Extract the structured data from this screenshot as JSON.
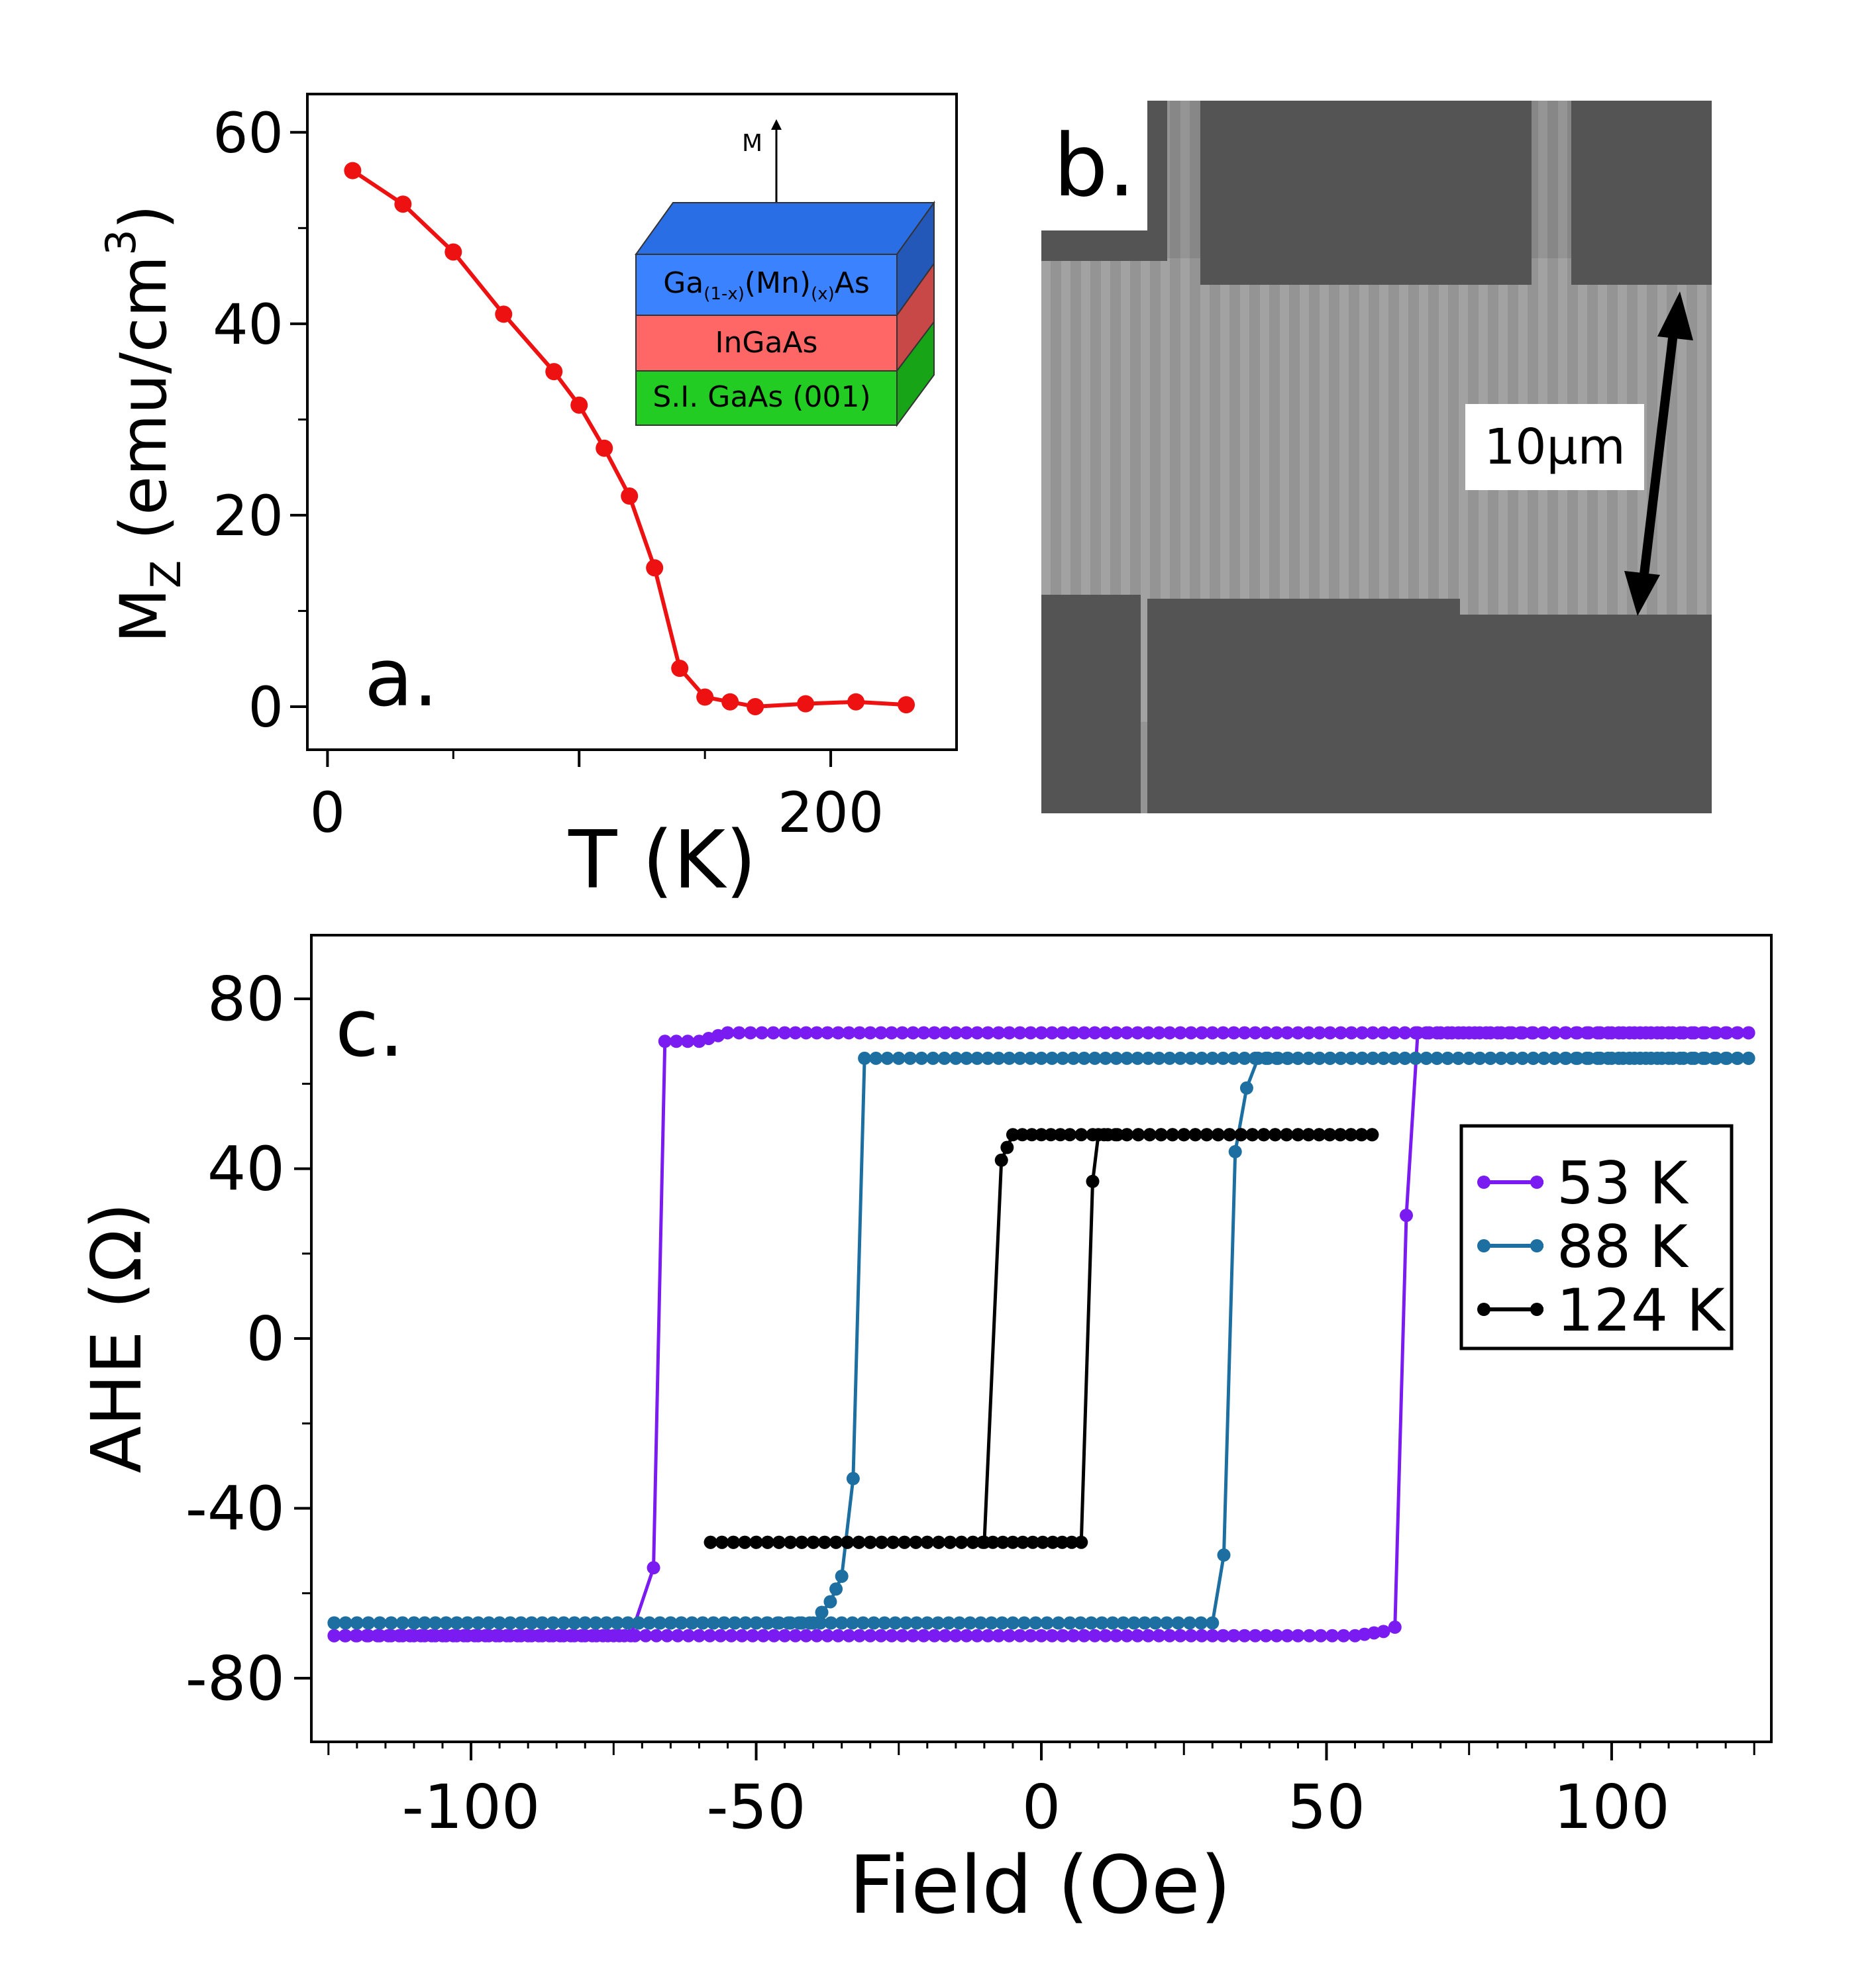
{
  "panel_a": {
    "label": "a.",
    "inset": {
      "arrow_label": "M",
      "layers": [
        {
          "text": "Ga(1-x)(Mn)(x)As",
          "main1": "Ga",
          "sub1": "(1-x)",
          "main2": "(Mn)",
          "sub2": "(x)",
          "main3": "As",
          "color": "#3a82ff"
        },
        {
          "text": "InGaAs",
          "color": "#ff6666"
        },
        {
          "text": "S.I. GaAs (001)",
          "color": "#22cc22"
        }
      ]
    }
  },
  "panel_b": {
    "label": "b.",
    "scale_bar": "10μm"
  },
  "panel_c": {
    "label": "c."
  },
  "chart_data": [
    {
      "id": "a",
      "type": "line",
      "title": "",
      "xlabel": "T (K)",
      "ylabel": "M_Z (emu/cm^3)",
      "ylabel_parts": {
        "main": "M",
        "sub": "Z",
        "unit": " (emu/cm",
        "sup": "3",
        "close": ")"
      },
      "xlim": [
        -8,
        250
      ],
      "ylim": [
        -4.5,
        64
      ],
      "xticks": [
        0,
        200
      ],
      "yticks": [
        0,
        20,
        40,
        60
      ],
      "color": "#ee1111",
      "series": [
        {
          "name": "Mz",
          "x": [
            10,
            30,
            50,
            70,
            90,
            100,
            110,
            120,
            130,
            140,
            150,
            160,
            170,
            190,
            210,
            230
          ],
          "y": [
            56,
            52.5,
            47.5,
            41,
            35,
            31.5,
            27,
            22,
            14.5,
            4,
            1,
            0.5,
            0,
            0.3,
            0.5,
            0.2
          ]
        }
      ]
    },
    {
      "id": "c",
      "type": "line",
      "title": "",
      "xlabel": "Field (Oe)",
      "ylabel": "AHE (Ω)",
      "xlim": [
        -128,
        128
      ],
      "ylim": [
        -95,
        95
      ],
      "xticks": [
        -100,
        -50,
        0,
        50,
        100
      ],
      "yticks": [
        -80,
        -40,
        0,
        40,
        80
      ],
      "legend": "top-right",
      "series": [
        {
          "name": "53 K",
          "color": "#7a1bf2",
          "x": [
            -124,
            -110,
            -95,
            -80,
            -72,
            -68,
            -66,
            -64,
            -60,
            -55,
            -45,
            -30,
            -15,
            0,
            15,
            30,
            45,
            60,
            75,
            90,
            105,
            124,
            124,
            110,
            100,
            90,
            80,
            68,
            66,
            64,
            62,
            60,
            55,
            45,
            30,
            15,
            0,
            -15,
            -30,
            -45,
            -60,
            -75,
            -90,
            -105,
            -124
          ],
          "y": [
            -70,
            -70,
            -70,
            -70,
            -70,
            -54,
            70,
            70,
            70,
            72,
            72,
            72,
            72,
            72,
            72,
            72,
            72,
            72,
            72,
            72,
            72,
            72,
            72,
            72,
            72,
            72,
            72,
            72,
            72,
            29,
            -68,
            -69,
            -70,
            -70,
            -70,
            -70,
            -70,
            -70,
            -70,
            -70,
            -70,
            -70,
            -70,
            -70,
            -70
          ]
        },
        {
          "name": "88 K",
          "color": "#1c6fa0",
          "x": [
            -124,
            -110,
            -95,
            -80,
            -65,
            -50,
            -40,
            -37,
            -35,
            -33,
            -31,
            -29,
            -25,
            -15,
            0,
            15,
            30,
            45,
            60,
            75,
            90,
            105,
            124,
            124,
            110,
            100,
            90,
            75,
            60,
            45,
            38,
            36,
            34,
            32,
            30,
            20,
            5,
            -5,
            -20,
            -35,
            -50,
            -65,
            -80,
            -95,
            -110,
            -124
          ],
          "y": [
            -67,
            -67,
            -67,
            -67,
            -67,
            -67,
            -67,
            -62,
            -56,
            -33,
            66,
            66,
            66,
            66,
            66,
            66,
            66,
            66,
            66,
            66,
            66,
            66,
            66,
            66,
            66,
            66,
            66,
            66,
            66,
            66,
            66,
            59,
            44,
            -51,
            -67,
            -67,
            -67,
            -67,
            -67,
            -67,
            -67,
            -67,
            -67,
            -67,
            -67,
            -67
          ]
        },
        {
          "name": "124 K",
          "color": "#000000",
          "x": [
            -58,
            -50,
            -40,
            -30,
            -20,
            -10,
            -7,
            -5,
            0,
            5,
            15,
            25,
            35,
            45,
            58,
            58,
            45,
            35,
            25,
            15,
            10,
            9,
            7,
            2,
            -5,
            -12,
            -20,
            -30,
            -40,
            -50,
            -58
          ],
          "y": [
            -48,
            -48,
            -48,
            -48,
            -48,
            -48,
            42,
            48,
            48,
            48,
            48,
            48,
            48,
            48,
            48,
            48,
            48,
            48,
            48,
            48,
            48,
            37,
            -48,
            -48,
            -48,
            -48,
            -48,
            -48,
            -48,
            -48,
            -48
          ]
        }
      ]
    }
  ]
}
